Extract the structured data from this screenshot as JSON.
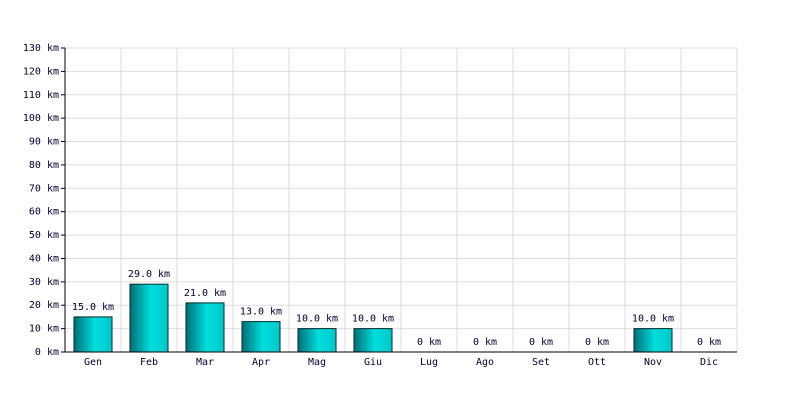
{
  "chart_data": {
    "type": "bar",
    "categories": [
      "Gen",
      "Feb",
      "Mar",
      "Apr",
      "Mag",
      "Giu",
      "Lug",
      "Ago",
      "Set",
      "Ott",
      "Nov",
      "Dic"
    ],
    "values": [
      15,
      29,
      21,
      13,
      10,
      10,
      0,
      0,
      0,
      0,
      10,
      0
    ],
    "value_labels": [
      "15.0 km",
      "29.0 km",
      "21.0 km",
      "13.0 km",
      "10.0 km",
      "10.0 km",
      "0 km",
      "0 km",
      "0 km",
      "0 km",
      "10.0 km",
      "0 km"
    ],
    "color": "#00dede",
    "ylim": [
      0,
      130
    ],
    "yticks": [
      {
        "value": 0,
        "label": "0 km"
      },
      {
        "value": 10,
        "label": "10 km"
      },
      {
        "value": 20,
        "label": "20 km"
      },
      {
        "value": 30,
        "label": "30 km"
      },
      {
        "value": 40,
        "label": "40 km"
      },
      {
        "value": 50,
        "label": "50 km"
      },
      {
        "value": 60,
        "label": "60 km"
      },
      {
        "value": 70,
        "label": "70 km"
      },
      {
        "value": 80,
        "label": "80 km"
      },
      {
        "value": 90,
        "label": "90 km"
      },
      {
        "value": 100,
        "label": "100 km"
      },
      {
        "value": 110,
        "label": "110 km"
      },
      {
        "value": 120,
        "label": "120 km"
      },
      {
        "value": 130,
        "label": "130 km"
      }
    ],
    "grid": true
  }
}
